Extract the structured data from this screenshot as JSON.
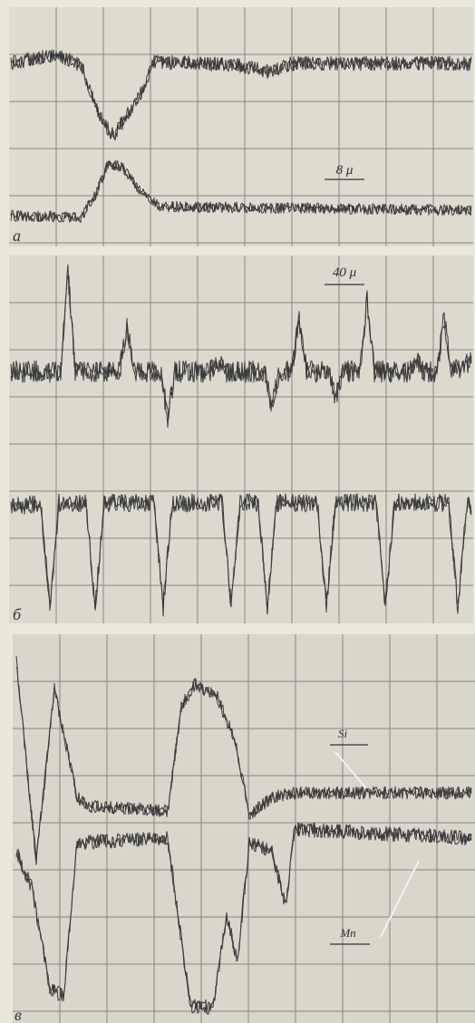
{
  "panels": [
    {
      "label": "а",
      "scale": "8 μ"
    },
    {
      "label": "б",
      "scale": "40 μ"
    },
    {
      "label": "в",
      "markers": [
        "Si",
        "Mn"
      ]
    }
  ]
}
